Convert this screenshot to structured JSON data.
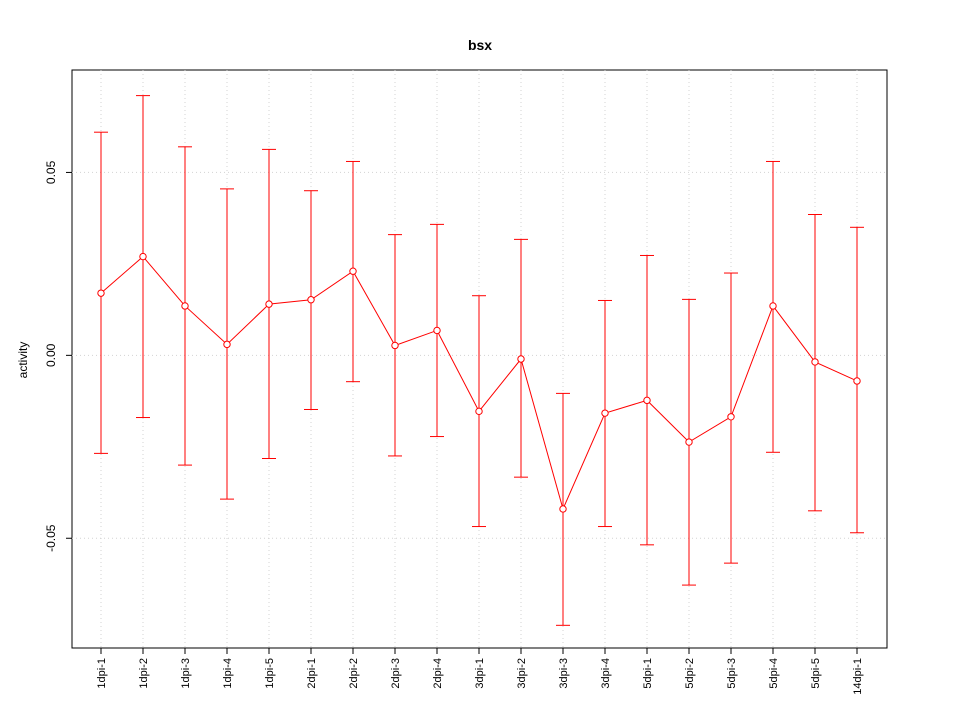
{
  "chart_data": {
    "type": "line",
    "title": "bsx",
    "xlabel": "",
    "ylabel": "activity",
    "ylim": [
      -0.08,
      0.078
    ],
    "yticks": [
      "0.05",
      "0.00",
      "-0.05"
    ],
    "ytick_values": [
      0.05,
      0.0,
      -0.05
    ],
    "grid": true,
    "series_color": "#ff0000",
    "grid_color": "#d3d3d3",
    "categories": [
      "1dpi-1",
      "1dpi-2",
      "1dpi-3",
      "1dpi-4",
      "1dpi-5",
      "2dpi-1",
      "2dpi-2",
      "2dpi-3",
      "2dpi-4",
      "3dpi-1",
      "3dpi-2",
      "3dpi-3",
      "3dpi-4",
      "5dpi-1",
      "5dpi-2",
      "5dpi-3",
      "5dpi-4",
      "5dpi-5",
      "14dpi-1"
    ],
    "values": [
      0.017,
      0.027,
      0.0135,
      0.003,
      0.014,
      0.0152,
      0.023,
      0.0027,
      0.0068,
      -0.0153,
      -0.001,
      -0.042,
      -0.0158,
      -0.0123,
      -0.0237,
      -0.0168,
      0.0135,
      -0.0018,
      -0.007
    ],
    "upper": [
      0.061,
      0.071,
      0.057,
      0.0455,
      0.0563,
      0.045,
      0.053,
      0.033,
      0.0358,
      0.0163,
      0.0317,
      -0.0104,
      0.015,
      0.0273,
      0.0153,
      0.0225,
      0.053,
      0.0385,
      0.035
    ],
    "lower": [
      -0.0268,
      -0.017,
      -0.03,
      -0.0393,
      -0.0282,
      -0.0148,
      -0.0072,
      -0.0275,
      -0.0222,
      -0.0468,
      -0.0333,
      -0.0738,
      -0.0468,
      -0.0518,
      -0.0628,
      -0.0568,
      -0.0265,
      -0.0425,
      -0.0485
    ]
  }
}
